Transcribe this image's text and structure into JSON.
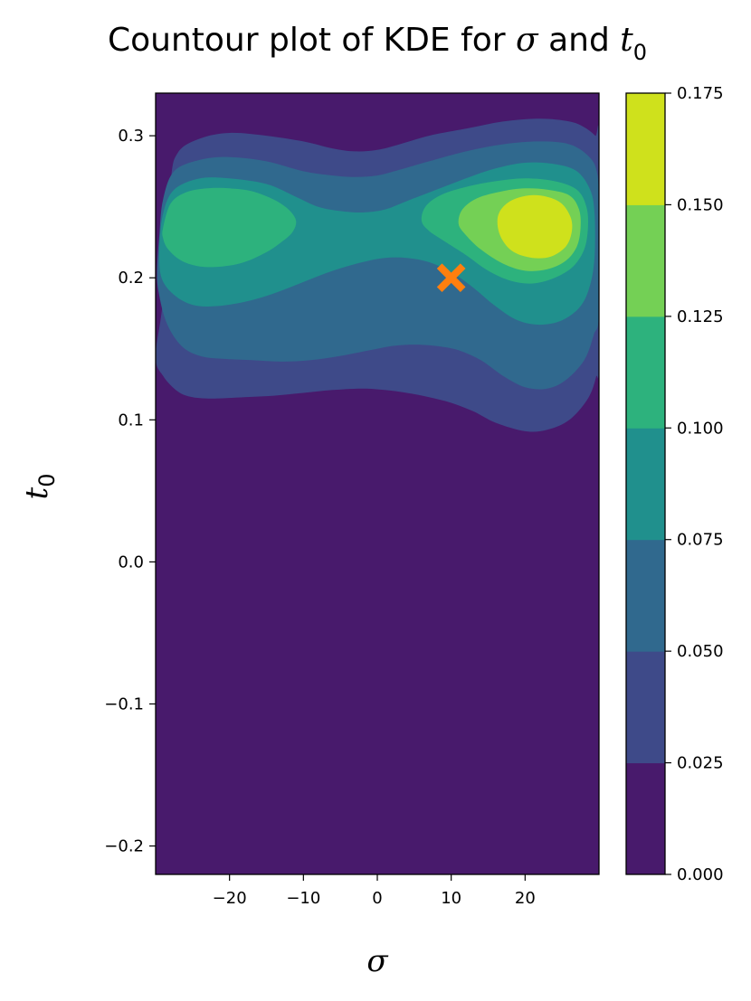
{
  "chart_data": {
    "type": "contour",
    "title": {
      "prefix": "Countour plot of KDE for ",
      "sym1": "σ",
      "middle": " and ",
      "sym2": "t",
      "sym2_sub": "0"
    },
    "xlabel": "σ",
    "ylabel": {
      "sym": "t",
      "sub": "0"
    },
    "xlim": [
      -30,
      30
    ],
    "ylim": [
      -0.22,
      0.33
    ],
    "x_ticks": [
      {
        "value": -20,
        "label": "−20"
      },
      {
        "value": -10,
        "label": "−10"
      },
      {
        "value": 0,
        "label": "0"
      },
      {
        "value": 10,
        "label": "10"
      },
      {
        "value": 20,
        "label": "20"
      }
    ],
    "y_ticks": [
      {
        "value": 0.3,
        "label": "0.3"
      },
      {
        "value": 0.2,
        "label": "0.2"
      },
      {
        "value": 0.1,
        "label": "0.1"
      },
      {
        "value": 0.0,
        "label": "0.0"
      },
      {
        "value": -0.1,
        "label": "−0.1"
      },
      {
        "value": -0.2,
        "label": "−0.2"
      }
    ],
    "colorbar": {
      "min": 0.0,
      "max": 0.175,
      "ticks": [
        {
          "value": 0.0,
          "label": "0.000"
        },
        {
          "value": 0.025,
          "label": "0.025"
        },
        {
          "value": 0.05,
          "label": "0.050"
        },
        {
          "value": 0.075,
          "label": "0.075"
        },
        {
          "value": 0.1,
          "label": "0.100"
        },
        {
          "value": 0.125,
          "label": "0.125"
        },
        {
          "value": 0.15,
          "label": "0.150"
        },
        {
          "value": 0.175,
          "label": "0.175"
        }
      ]
    },
    "levels": [
      {
        "low": 0.0,
        "high": 0.025,
        "color": "#481a6c"
      },
      {
        "low": 0.025,
        "high": 0.05,
        "color": "#3e4a89"
      },
      {
        "low": 0.05,
        "high": 0.075,
        "color": "#30698e"
      },
      {
        "low": 0.075,
        "high": 0.1,
        "color": "#20908d"
      },
      {
        "low": 0.1,
        "high": 0.125,
        "color": "#2db27d"
      },
      {
        "low": 0.125,
        "high": 0.15,
        "color": "#74d055"
      },
      {
        "low": 0.15,
        "high": 0.175,
        "color": "#cfe11c"
      }
    ],
    "contour_regions": [
      {
        "level": 1,
        "points": [
          [
            -30,
            0.145
          ],
          [
            -29,
            0.185
          ],
          [
            -28,
            0.265
          ],
          [
            -27,
            0.288
          ],
          [
            -24,
            0.298
          ],
          [
            -20,
            0.302
          ],
          [
            -15,
            0.3
          ],
          [
            -10,
            0.296
          ],
          [
            -6,
            0.291
          ],
          [
            -3,
            0.289
          ],
          [
            0,
            0.29
          ],
          [
            3,
            0.294
          ],
          [
            7,
            0.3
          ],
          [
            12,
            0.305
          ],
          [
            17,
            0.31
          ],
          [
            22,
            0.312
          ],
          [
            26,
            0.31
          ],
          [
            28,
            0.306
          ],
          [
            29.5,
            0.3
          ],
          [
            30,
            0.295
          ],
          [
            30,
            0.145
          ],
          [
            29.6,
            0.13
          ],
          [
            28.5,
            0.115
          ],
          [
            26,
            0.1
          ],
          [
            23,
            0.093
          ],
          [
            20,
            0.092
          ],
          [
            16,
            0.098
          ],
          [
            13,
            0.106
          ],
          [
            10,
            0.112
          ],
          [
            7,
            0.116
          ],
          [
            4,
            0.119
          ],
          [
            1,
            0.121
          ],
          [
            -2,
            0.122
          ],
          [
            -6,
            0.121
          ],
          [
            -10,
            0.119
          ],
          [
            -14,
            0.117
          ],
          [
            -18,
            0.116
          ],
          [
            -22,
            0.115
          ],
          [
            -25,
            0.116
          ],
          [
            -27,
            0.12
          ],
          [
            -29,
            0.131
          ]
        ]
      },
      {
        "level": 2,
        "points": [
          [
            -29.8,
            0.205
          ],
          [
            -29.5,
            0.23
          ],
          [
            -29,
            0.255
          ],
          [
            -27.5,
            0.275
          ],
          [
            -24,
            0.283
          ],
          [
            -20,
            0.285
          ],
          [
            -15,
            0.282
          ],
          [
            -10,
            0.275
          ],
          [
            -6,
            0.272
          ],
          [
            -3,
            0.271
          ],
          [
            0,
            0.272
          ],
          [
            3,
            0.276
          ],
          [
            7,
            0.282
          ],
          [
            12,
            0.289
          ],
          [
            17,
            0.294
          ],
          [
            22,
            0.296
          ],
          [
            26,
            0.294
          ],
          [
            28.5,
            0.286
          ],
          [
            29.7,
            0.275
          ],
          [
            30,
            0.25
          ],
          [
            30,
            0.175
          ],
          [
            29.3,
            0.16
          ],
          [
            28,
            0.142
          ],
          [
            25.5,
            0.128
          ],
          [
            23,
            0.122
          ],
          [
            20,
            0.123
          ],
          [
            17,
            0.131
          ],
          [
            14,
            0.142
          ],
          [
            11,
            0.149
          ],
          [
            8,
            0.152
          ],
          [
            5,
            0.153
          ],
          [
            2,
            0.152
          ],
          [
            -1,
            0.149
          ],
          [
            -5,
            0.145
          ],
          [
            -9,
            0.142
          ],
          [
            -13,
            0.141
          ],
          [
            -17,
            0.142
          ],
          [
            -21,
            0.143
          ],
          [
            -24,
            0.145
          ],
          [
            -26.5,
            0.152
          ],
          [
            -28.5,
            0.168
          ],
          [
            -29.6,
            0.19
          ]
        ]
      },
      {
        "level": 3,
        "points": [
          [
            -29.5,
            0.22
          ],
          [
            -29,
            0.245
          ],
          [
            -27.5,
            0.262
          ],
          [
            -24,
            0.27
          ],
          [
            -20,
            0.27
          ],
          [
            -15,
            0.266
          ],
          [
            -11,
            0.257
          ],
          [
            -8,
            0.25
          ],
          [
            -5,
            0.247
          ],
          [
            -2,
            0.246
          ],
          [
            1,
            0.248
          ],
          [
            4,
            0.254
          ],
          [
            8,
            0.262
          ],
          [
            12,
            0.27
          ],
          [
            16,
            0.277
          ],
          [
            20,
            0.281
          ],
          [
            24,
            0.28
          ],
          [
            27,
            0.275
          ],
          [
            28.8,
            0.262
          ],
          [
            29.4,
            0.245
          ],
          [
            29.4,
            0.215
          ],
          [
            28.8,
            0.195
          ],
          [
            27.5,
            0.18
          ],
          [
            25,
            0.17
          ],
          [
            22,
            0.167
          ],
          [
            19,
            0.17
          ],
          [
            16,
            0.18
          ],
          [
            13,
            0.193
          ],
          [
            10,
            0.204
          ],
          [
            7,
            0.211
          ],
          [
            4,
            0.214
          ],
          [
            1,
            0.214
          ],
          [
            -2,
            0.211
          ],
          [
            -6,
            0.205
          ],
          [
            -10,
            0.197
          ],
          [
            -14,
            0.189
          ],
          [
            -18,
            0.183
          ],
          [
            -22,
            0.18
          ],
          [
            -25,
            0.181
          ],
          [
            -27.5,
            0.188
          ],
          [
            -29.2,
            0.2
          ]
        ]
      },
      {
        "level": 4,
        "points": [
          [
            -29,
            0.235
          ],
          [
            -28,
            0.252
          ],
          [
            -26,
            0.26
          ],
          [
            -23,
            0.263
          ],
          [
            -20,
            0.263
          ],
          [
            -17,
            0.261
          ],
          [
            -14,
            0.255
          ],
          [
            -12,
            0.248
          ],
          [
            -11,
            0.24
          ],
          [
            -11.5,
            0.232
          ],
          [
            -13,
            0.225
          ],
          [
            -15,
            0.218
          ],
          [
            -18,
            0.211
          ],
          [
            -21,
            0.208
          ],
          [
            -24,
            0.208
          ],
          [
            -26.5,
            0.212
          ],
          [
            -28.3,
            0.22
          ],
          [
            -29,
            0.228
          ]
        ]
      },
      {
        "level": 4,
        "points": [
          [
            6,
            0.24
          ],
          [
            6.5,
            0.25
          ],
          [
            8.5,
            0.258
          ],
          [
            12,
            0.264
          ],
          [
            16,
            0.268
          ],
          [
            20,
            0.27
          ],
          [
            24,
            0.268
          ],
          [
            27,
            0.262
          ],
          [
            28.3,
            0.25
          ],
          [
            28.5,
            0.235
          ],
          [
            28,
            0.22
          ],
          [
            26.5,
            0.208
          ],
          [
            24,
            0.2
          ],
          [
            21,
            0.196
          ],
          [
            18,
            0.198
          ],
          [
            15,
            0.205
          ],
          [
            12,
            0.216
          ],
          [
            9,
            0.226
          ],
          [
            7,
            0.233
          ]
        ]
      },
      {
        "level": 5,
        "points": [
          [
            11,
            0.238
          ],
          [
            11.5,
            0.248
          ],
          [
            13.5,
            0.256
          ],
          [
            17,
            0.261
          ],
          [
            20,
            0.263
          ],
          [
            23,
            0.262
          ],
          [
            26,
            0.258
          ],
          [
            27.3,
            0.248
          ],
          [
            27.5,
            0.235
          ],
          [
            27,
            0.222
          ],
          [
            25.5,
            0.212
          ],
          [
            23,
            0.206
          ],
          [
            20,
            0.205
          ],
          [
            17,
            0.21
          ],
          [
            14,
            0.22
          ],
          [
            12,
            0.23
          ]
        ]
      },
      {
        "level": 6,
        "points": [
          [
            16.3,
            0.236
          ],
          [
            16.5,
            0.246
          ],
          [
            18,
            0.254
          ],
          [
            20.5,
            0.258
          ],
          [
            23,
            0.257
          ],
          [
            25,
            0.252
          ],
          [
            26.2,
            0.242
          ],
          [
            26.3,
            0.232
          ],
          [
            25.5,
            0.222
          ],
          [
            23.5,
            0.215
          ],
          [
            21,
            0.214
          ],
          [
            18.5,
            0.218
          ],
          [
            17,
            0.226
          ]
        ]
      }
    ],
    "marker": {
      "x": 10,
      "y": 0.2,
      "symbol": "x",
      "color": "#ff7f0e"
    }
  }
}
